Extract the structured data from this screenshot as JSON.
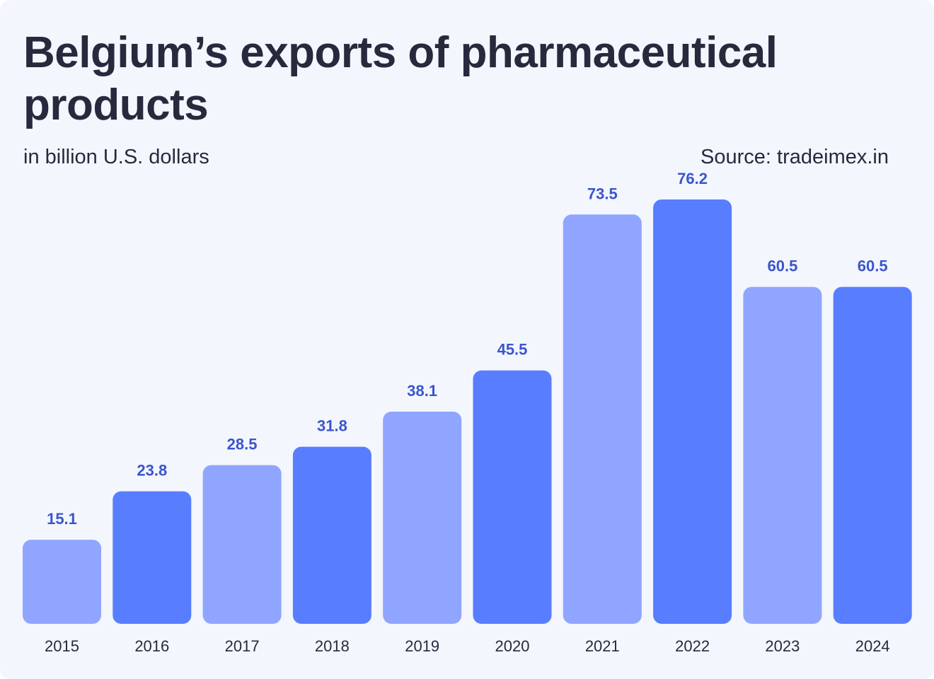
{
  "title": "Belgium’s exports of pharmaceutical products",
  "subtitle": "in billion U.S. dollars",
  "source": "Source: tradeimex.in",
  "colors": {
    "background": "#f3f6fd",
    "text": "#272a3d",
    "bar_light": "#8fa5ff",
    "bar_dark": "#587eff",
    "value_label": "#3b55cc"
  },
  "chart_data": {
    "type": "bar",
    "title": "Belgium’s exports of pharmaceutical products",
    "subtitle": "in billion U.S. dollars",
    "xlabel": "",
    "ylabel": "",
    "categories": [
      "2015",
      "2016",
      "2017",
      "2018",
      "2019",
      "2020",
      "2021",
      "2022",
      "2023",
      "2024"
    ],
    "values": [
      15.1,
      23.8,
      28.5,
      31.8,
      38.1,
      45.5,
      73.5,
      76.2,
      60.5,
      60.5
    ],
    "value_labels": [
      "15.1",
      "23.8",
      "28.5",
      "31.8",
      "38.1",
      "45.5",
      "73.5",
      "76.2",
      "60.5",
      "60.5"
    ],
    "ylim": [
      0,
      76.2
    ],
    "grid": false,
    "legend": "none"
  }
}
